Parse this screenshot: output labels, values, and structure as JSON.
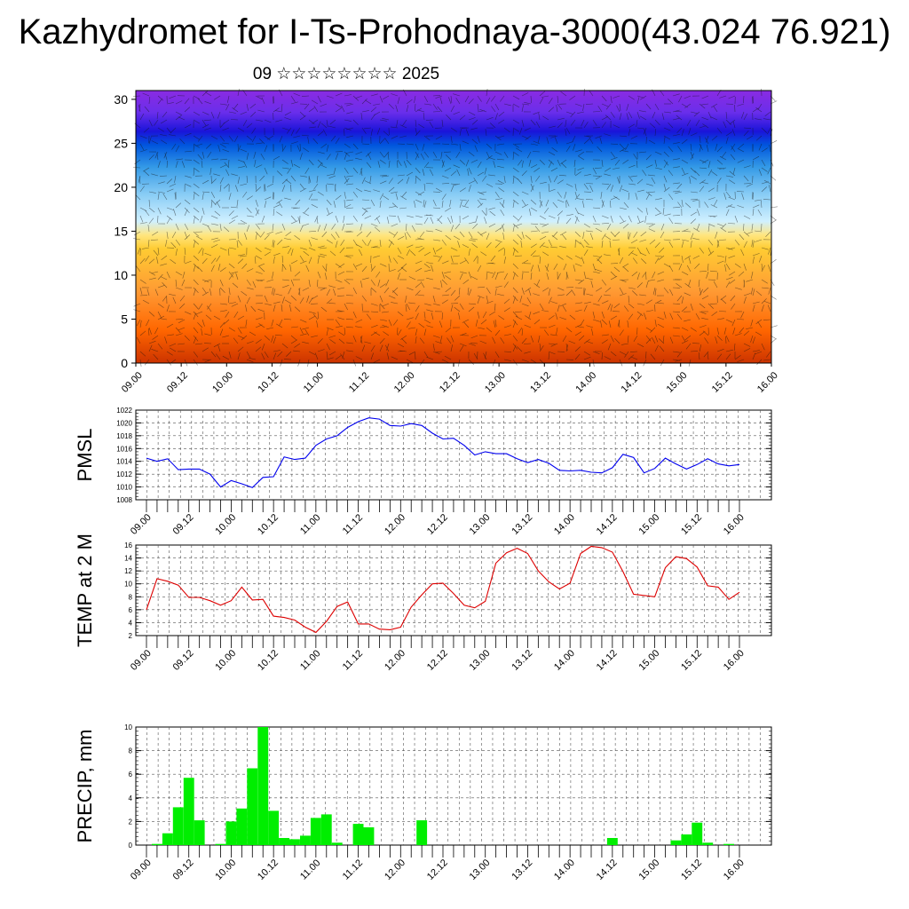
{
  "title": "Kazhydromet for I-Ts-Prohodnaya-3000(43.024 76.921)",
  "subtitle": "09 ☆☆☆☆☆☆☆☆ 2025",
  "x_tick_labels": [
    "09.00",
    "09.12",
    "10.00",
    "10.12",
    "11.00",
    "11.12",
    "12.00",
    "12.12",
    "13.00",
    "13.12",
    "14.00",
    "14.12",
    "15.00",
    "15.12",
    "16.00"
  ],
  "chart_data": [
    {
      "type": "heatmap",
      "description_values": "vertical cross-section with wind barbs",
      "ylim": [
        0,
        31
      ],
      "yticks": [
        0,
        5,
        10,
        15,
        20,
        25,
        30
      ],
      "colors": [
        "#cc3300",
        "#ff6600",
        "#ff9933",
        "#ffcc33",
        "#ffe680",
        "#d0f0ff",
        "#88ccf5",
        "#3399e6",
        "#0055dd",
        "#1a14d9",
        "#6a2eeb",
        "#8a2be2"
      ]
    },
    {
      "type": "line",
      "ylabel": "PMSL",
      "ylim": [
        1008,
        1022
      ],
      "yticks": [
        1008,
        1010,
        1012,
        1014,
        1016,
        1018,
        1020,
        1022
      ],
      "color": "#0000ee",
      "values": [
        1014.5,
        1014.0,
        1014.4,
        1012.7,
        1012.8,
        1012.8,
        1012.0,
        1010.0,
        1011.0,
        1010.5,
        1009.9,
        1011.5,
        1011.6,
        1014.7,
        1014.3,
        1014.5,
        1016.5,
        1017.5,
        1018.0,
        1019.3,
        1020.2,
        1020.8,
        1020.6,
        1019.6,
        1019.5,
        1019.9,
        1019.6,
        1018.4,
        1017.5,
        1017.6,
        1016.5,
        1015.0,
        1015.5,
        1015.2,
        1015.2,
        1014.4,
        1013.8,
        1014.3,
        1013.7,
        1012.6,
        1012.5,
        1012.6,
        1012.3,
        1012.2,
        1013.0,
        1015.1,
        1014.6,
        1012.2,
        1012.9,
        1014.5,
        1013.6,
        1012.8,
        1013.5,
        1014.4,
        1013.6,
        1013.3,
        1013.5
      ]
    },
    {
      "type": "line",
      "ylabel": "TEMP at 2 M",
      "ylim": [
        2,
        16
      ],
      "yticks": [
        2,
        4,
        6,
        8,
        10,
        12,
        14,
        16
      ],
      "color": "#dd0000",
      "values": [
        6.0,
        10.8,
        10.4,
        9.8,
        7.9,
        7.9,
        7.4,
        6.7,
        7.4,
        9.5,
        7.5,
        7.6,
        5.0,
        4.8,
        4.4,
        3.3,
        2.5,
        4.2,
        6.5,
        7.2,
        3.8,
        3.8,
        3.0,
        2.9,
        3.3,
        6.4,
        8.3,
        10.0,
        10.1,
        8.5,
        6.7,
        6.3,
        7.3,
        13.2,
        14.8,
        15.5,
        14.7,
        12.0,
        10.3,
        9.2,
        10.1,
        14.7,
        15.8,
        15.6,
        14.9,
        11.9,
        8.4,
        8.2,
        8.0,
        12.5,
        14.2,
        13.9,
        12.6,
        9.7,
        9.5,
        7.6,
        8.7
      ]
    },
    {
      "type": "bar",
      "ylabel": "PRECIP, mm",
      "ylim": [
        0,
        10
      ],
      "yticks": [
        0,
        2,
        4,
        6,
        8,
        10
      ],
      "color": "#00ee00",
      "values": [
        0,
        0.1,
        1.0,
        3.2,
        5.7,
        2.1,
        0,
        0.1,
        2.0,
        3.1,
        6.5,
        10.0,
        2.9,
        0.6,
        0.5,
        0.8,
        2.3,
        2.6,
        0.2,
        0,
        1.8,
        1.5,
        0,
        0,
        0,
        0,
        2.1,
        0,
        0,
        0,
        0,
        0,
        0,
        0,
        0,
        0,
        0,
        0,
        0,
        0,
        0,
        0,
        0,
        0,
        0.6,
        0,
        0,
        0,
        0,
        0,
        0.4,
        0.9,
        1.9,
        0.2,
        0,
        0.1,
        0
      ]
    }
  ]
}
